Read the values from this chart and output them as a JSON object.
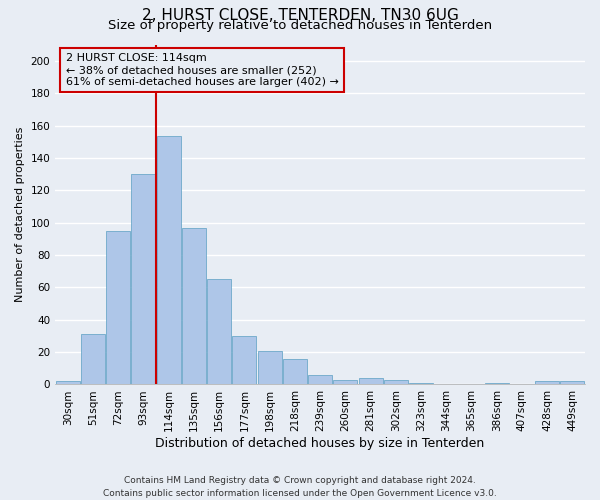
{
  "title1": "2, HURST CLOSE, TENTERDEN, TN30 6UG",
  "title2": "Size of property relative to detached houses in Tenterden",
  "xlabel": "Distribution of detached houses by size in Tenterden",
  "ylabel": "Number of detached properties",
  "bar_labels": [
    "30sqm",
    "51sqm",
    "72sqm",
    "93sqm",
    "114sqm",
    "135sqm",
    "156sqm",
    "177sqm",
    "198sqm",
    "218sqm",
    "239sqm",
    "260sqm",
    "281sqm",
    "302sqm",
    "323sqm",
    "344sqm",
    "365sqm",
    "386sqm",
    "407sqm",
    "428sqm",
    "449sqm"
  ],
  "bar_values": [
    2,
    31,
    95,
    130,
    154,
    97,
    65,
    30,
    21,
    16,
    6,
    3,
    4,
    3,
    1,
    0,
    0,
    1,
    0,
    2,
    2
  ],
  "bar_color": "#aec6e8",
  "bar_edge_color": "#5a9fc2",
  "background_color": "#e8edf4",
  "grid_color": "#ffffff",
  "vline_index": 4,
  "vline_color": "#cc0000",
  "annotation_line1": "2 HURST CLOSE: 114sqm",
  "annotation_line2": "← 38% of detached houses are smaller (252)",
  "annotation_line3": "61% of semi-detached houses are larger (402) →",
  "annotation_box_color": "#cc0000",
  "ylim": [
    0,
    210
  ],
  "yticks": [
    0,
    20,
    40,
    60,
    80,
    100,
    120,
    140,
    160,
    180,
    200
  ],
  "footer": "Contains HM Land Registry data © Crown copyright and database right 2024.\nContains public sector information licensed under the Open Government Licence v3.0.",
  "title1_fontsize": 11,
  "title2_fontsize": 9.5,
  "xlabel_fontsize": 9,
  "ylabel_fontsize": 8,
  "tick_fontsize": 7.5,
  "annotation_fontsize": 8,
  "footer_fontsize": 6.5
}
